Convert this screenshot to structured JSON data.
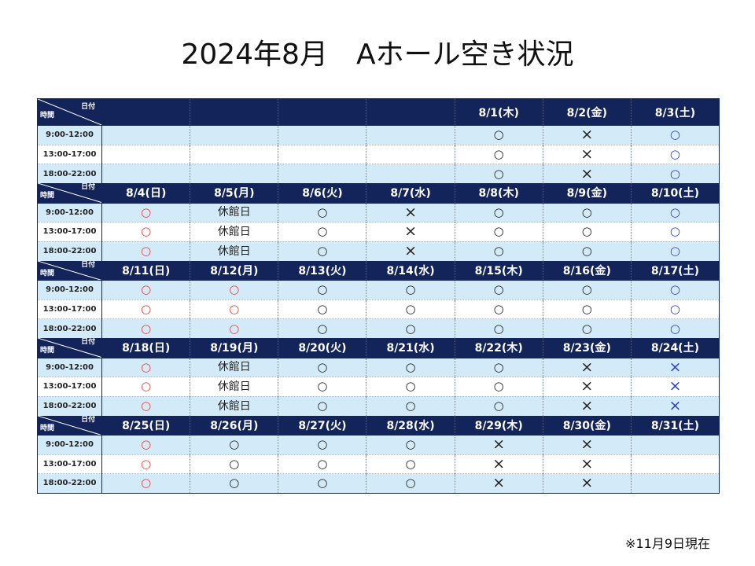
{
  "title": "2024年8月　Aホール空き状況",
  "note": "※11月9日現在",
  "header_labels": {
    "date": "日付",
    "time": "時間"
  },
  "time_slots": [
    "9:00-12:00",
    "13:00-17:00",
    "18:00-22:00"
  ],
  "colors": {
    "header": "#13245b",
    "stripe": "#d3ebf8",
    "weekday": "#222222",
    "sunday_holiday": "#e5443c",
    "saturday": "#2b3fd6"
  },
  "weeks": [
    {
      "days": [
        {
          "label": "",
          "color": "#222222",
          "slots": [
            "",
            "",
            ""
          ]
        },
        {
          "label": "",
          "color": "#222222",
          "slots": [
            "",
            "",
            ""
          ]
        },
        {
          "label": "",
          "color": "#222222",
          "slots": [
            "",
            "",
            ""
          ]
        },
        {
          "label": "",
          "color": "#222222",
          "slots": [
            "",
            "",
            ""
          ]
        },
        {
          "label": "8/1(木)",
          "color": "#222222",
          "slots": [
            "○",
            "○",
            "○"
          ]
        },
        {
          "label": "8/2(金)",
          "color": "#222222",
          "slots": [
            "×",
            "×",
            "×"
          ]
        },
        {
          "label": "8/3(土)",
          "color": "#2b3fd6",
          "slots": [
            "○",
            "○",
            "○"
          ]
        }
      ]
    },
    {
      "days": [
        {
          "label": "8/4(日)",
          "color": "#e5443c",
          "slots": [
            "○",
            "○",
            "○"
          ]
        },
        {
          "label": "8/5(月)",
          "color": "#222222",
          "slots": [
            "休館日",
            "休館日",
            "休館日"
          ]
        },
        {
          "label": "8/6(火)",
          "color": "#222222",
          "slots": [
            "○",
            "○",
            "○"
          ]
        },
        {
          "label": "8/7(水)",
          "color": "#222222",
          "slots": [
            "×",
            "×",
            "×"
          ]
        },
        {
          "label": "8/8(木)",
          "color": "#222222",
          "slots": [
            "○",
            "○",
            "○"
          ]
        },
        {
          "label": "8/9(金)",
          "color": "#222222",
          "slots": [
            "○",
            "○",
            "○"
          ]
        },
        {
          "label": "8/10(土)",
          "color": "#2b3fd6",
          "slots": [
            "○",
            "○",
            "○"
          ]
        }
      ]
    },
    {
      "days": [
        {
          "label": "8/11(日)",
          "color": "#e5443c",
          "slots": [
            "○",
            "○",
            "○"
          ]
        },
        {
          "label": "8/12(月)",
          "color": "#e5443c",
          "slots": [
            "○",
            "○",
            "○"
          ]
        },
        {
          "label": "8/13(火)",
          "color": "#222222",
          "slots": [
            "○",
            "○",
            "○"
          ]
        },
        {
          "label": "8/14(水)",
          "color": "#222222",
          "slots": [
            "○",
            "○",
            "○"
          ]
        },
        {
          "label": "8/15(木)",
          "color": "#222222",
          "slots": [
            "○",
            "○",
            "○"
          ]
        },
        {
          "label": "8/16(金)",
          "color": "#222222",
          "slots": [
            "○",
            "○",
            "○"
          ]
        },
        {
          "label": "8/17(土)",
          "color": "#2b3fd6",
          "slots": [
            "○",
            "○",
            "○"
          ]
        }
      ]
    },
    {
      "days": [
        {
          "label": "8/18(日)",
          "color": "#e5443c",
          "slots": [
            "○",
            "○",
            "○"
          ]
        },
        {
          "label": "8/19(月)",
          "color": "#222222",
          "slots": [
            "休館日",
            "休館日",
            "休館日"
          ]
        },
        {
          "label": "8/20(火)",
          "color": "#222222",
          "slots": [
            "○",
            "○",
            "○"
          ]
        },
        {
          "label": "8/21(水)",
          "color": "#222222",
          "slots": [
            "○",
            "○",
            "○"
          ]
        },
        {
          "label": "8/22(木)",
          "color": "#222222",
          "slots": [
            "○",
            "○",
            "○"
          ]
        },
        {
          "label": "8/23(金)",
          "color": "#222222",
          "slots": [
            "×",
            "×",
            "×"
          ]
        },
        {
          "label": "8/24(土)",
          "color": "#2b3fd6",
          "slots": [
            "×",
            "×",
            "×"
          ]
        }
      ]
    },
    {
      "days": [
        {
          "label": "8/25(日)",
          "color": "#e5443c",
          "slots": [
            "○",
            "○",
            "○"
          ]
        },
        {
          "label": "8/26(月)",
          "color": "#222222",
          "slots": [
            "○",
            "○",
            "○"
          ]
        },
        {
          "label": "8/27(火)",
          "color": "#222222",
          "slots": [
            "○",
            "○",
            "○"
          ]
        },
        {
          "label": "8/28(水)",
          "color": "#222222",
          "slots": [
            "○",
            "○",
            "○"
          ]
        },
        {
          "label": "8/29(木)",
          "color": "#222222",
          "slots": [
            "×",
            "×",
            "×"
          ]
        },
        {
          "label": "8/30(金)",
          "color": "#222222",
          "slots": [
            "×",
            "×",
            "×"
          ]
        },
        {
          "label": "8/31(土)",
          "color": "#2b3fd6",
          "slots": [
            "",
            "",
            ""
          ]
        }
      ]
    }
  ]
}
